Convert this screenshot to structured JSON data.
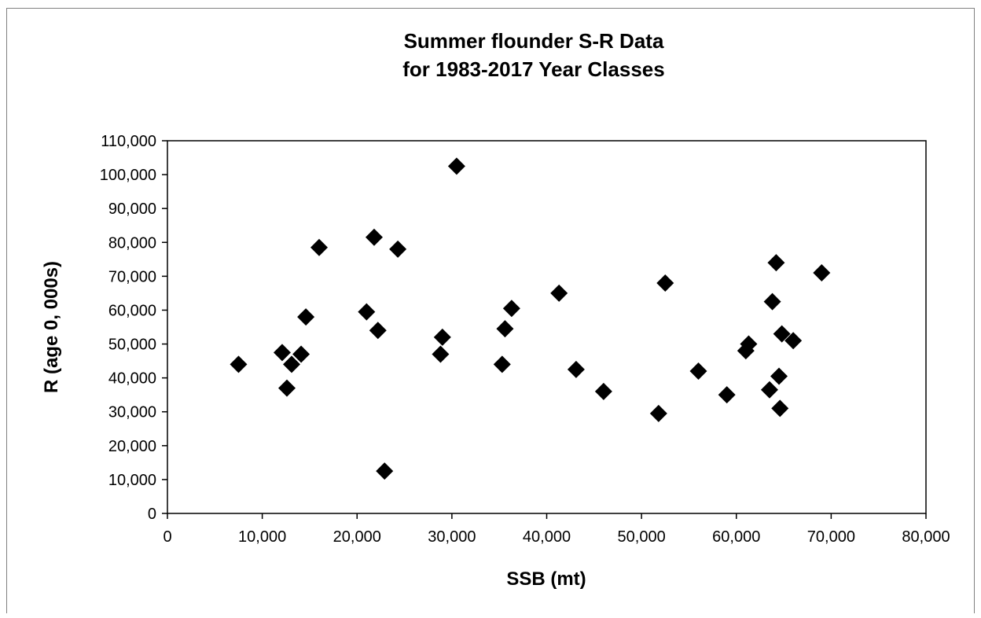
{
  "chart_data": {
    "type": "scatter",
    "title": [
      "Summer flounder  S-R Data",
      "for 1983-2017 Year  Classes"
    ],
    "xlabel": "SSB (mt)",
    "ylabel": "R (age 0, 000s)",
    "xlim": [
      0,
      80000
    ],
    "ylim": [
      0,
      110000
    ],
    "x_ticks": [
      0,
      10000,
      20000,
      30000,
      40000,
      50000,
      60000,
      70000,
      80000
    ],
    "y_ticks": [
      0,
      10000,
      20000,
      30000,
      40000,
      50000,
      60000,
      70000,
      80000,
      90000,
      100000,
      110000
    ],
    "x_tick_labels": [
      "0",
      "10,000",
      "20,000",
      "30,000",
      "40,000",
      "50,000",
      "60,000",
      "70,000",
      "80,000"
    ],
    "y_tick_labels": [
      "0",
      "10,000",
      "20,000",
      "30,000",
      "40,000",
      "50,000",
      "60,000",
      "70,000",
      "80,000",
      "90,000",
      "100,000",
      "110,000"
    ],
    "grid": false,
    "legend": "none",
    "marker": "diamond",
    "marker_color": "#000000",
    "points": [
      {
        "x": 7500,
        "y": 44000
      },
      {
        "x": 12100,
        "y": 47500
      },
      {
        "x": 12600,
        "y": 37000
      },
      {
        "x": 13100,
        "y": 44000
      },
      {
        "x": 14100,
        "y": 47000
      },
      {
        "x": 14600,
        "y": 58000
      },
      {
        "x": 16000,
        "y": 78500
      },
      {
        "x": 21000,
        "y": 59500
      },
      {
        "x": 21800,
        "y": 81500
      },
      {
        "x": 22200,
        "y": 54000
      },
      {
        "x": 22900,
        "y": 12500
      },
      {
        "x": 24300,
        "y": 78000
      },
      {
        "x": 28800,
        "y": 47000
      },
      {
        "x": 29000,
        "y": 52000
      },
      {
        "x": 30500,
        "y": 102500
      },
      {
        "x": 35300,
        "y": 44000
      },
      {
        "x": 35600,
        "y": 54500
      },
      {
        "x": 36300,
        "y": 60500
      },
      {
        "x": 41300,
        "y": 65000
      },
      {
        "x": 43100,
        "y": 42500
      },
      {
        "x": 46000,
        "y": 36000
      },
      {
        "x": 51800,
        "y": 29500
      },
      {
        "x": 52500,
        "y": 68000
      },
      {
        "x": 56000,
        "y": 42000
      },
      {
        "x": 59000,
        "y": 35000
      },
      {
        "x": 61000,
        "y": 48000
      },
      {
        "x": 61300,
        "y": 50000
      },
      {
        "x": 63500,
        "y": 36500
      },
      {
        "x": 63800,
        "y": 62500
      },
      {
        "x": 64200,
        "y": 74000
      },
      {
        "x": 64500,
        "y": 40500
      },
      {
        "x": 64600,
        "y": 31000
      },
      {
        "x": 64800,
        "y": 53000
      },
      {
        "x": 66000,
        "y": 51000
      },
      {
        "x": 69000,
        "y": 71000
      }
    ]
  }
}
